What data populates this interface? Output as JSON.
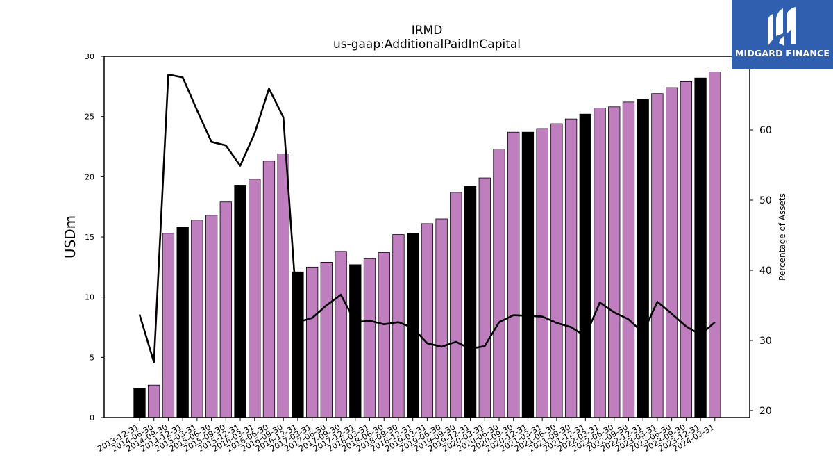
{
  "logo": {
    "text": "MIDGARD FINANCE",
    "background": "#2f5fae"
  },
  "chart_data": {
    "type": "bar",
    "title": "IRMD",
    "subtitle": "us-gaap:AdditionalPaidInCapital",
    "ylabel": "USDm",
    "y2label": "Percentage of Assets",
    "ylim": [
      0,
      30
    ],
    "y2lim": [
      19,
      70.5
    ],
    "yticks": [
      0,
      5,
      10,
      15,
      20,
      25,
      30
    ],
    "y2ticks": [
      20,
      30,
      40,
      50,
      60
    ],
    "colors": {
      "annual_bar": "#000000",
      "quarter_bar": "#bf7fbf",
      "line": "#000000"
    },
    "categories": [
      "2013-12-31",
      "2014-06-30",
      "2014-09-30",
      "2014-12-31",
      "2015-03-31",
      "2015-06-30",
      "2015-09-30",
      "2015-12-31",
      "2016-03-31",
      "2016-06-30",
      "2016-09-30",
      "2016-12-31",
      "2017-03-31",
      "2017-06-30",
      "2017-09-30",
      "2017-12-31",
      "2018-03-31",
      "2018-06-30",
      "2018-09-30",
      "2018-12-31",
      "2019-03-31",
      "2019-06-30",
      "2019-09-30",
      "2019-12-31",
      "2020-03-31",
      "2020-06-30",
      "2020-09-30",
      "2020-12-31",
      "2021-03-31",
      "2021-06-30",
      "2021-09-30",
      "2021-12-31",
      "2022-03-31",
      "2022-06-30",
      "2022-09-30",
      "2022-12-31",
      "2023-03-31",
      "2023-06-30",
      "2023-09-30",
      "2023-12-31",
      "2024-03-31"
    ],
    "series": [
      {
        "type": "bar",
        "values": [
          2.4,
          2.7,
          15.3,
          15.8,
          16.4,
          16.8,
          17.9,
          19.3,
          19.8,
          21.3,
          21.9,
          12.1,
          12.5,
          12.9,
          13.8,
          12.7,
          13.2,
          13.7,
          15.2,
          15.3,
          16.1,
          16.5,
          18.7,
          19.2,
          19.9,
          22.3,
          23.7,
          23.7,
          24.0,
          24.4,
          24.8,
          25.2,
          25.7,
          25.8,
          26.2,
          26.4,
          26.9,
          27.4,
          27.9,
          28.2,
          28.7
        ],
        "annual": [
          true,
          false,
          false,
          true,
          false,
          false,
          false,
          true,
          false,
          false,
          false,
          true,
          false,
          false,
          false,
          true,
          false,
          false,
          false,
          true,
          false,
          false,
          false,
          true,
          false,
          false,
          false,
          true,
          false,
          false,
          false,
          true,
          false,
          false,
          false,
          true,
          false,
          false,
          false,
          true,
          false
        ]
      },
      {
        "type": "line",
        "axis": "right",
        "values": [
          33.7,
          26.9,
          67.9,
          67.5,
          62.8,
          58.3,
          57.8,
          54.9,
          59.5,
          65.9,
          61.8,
          32.6,
          33.2,
          35.0,
          36.5,
          32.6,
          32.8,
          32.3,
          32.6,
          31.8,
          29.6,
          29.1,
          29.8,
          28.8,
          29.2,
          32.6,
          33.6,
          33.5,
          33.4,
          32.5,
          31.9,
          30.6,
          35.4,
          34.0,
          33.0,
          31.1,
          35.5,
          33.8,
          32.0,
          30.8,
          32.6
        ]
      }
    ]
  }
}
